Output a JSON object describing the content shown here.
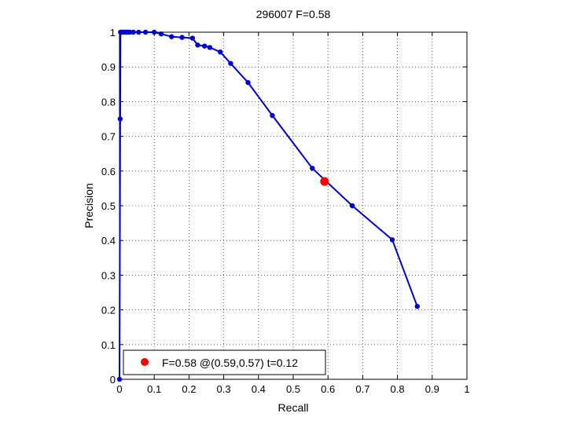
{
  "chart_data": {
    "type": "line",
    "title": "296007 F=0.58",
    "xlabel": "Recall",
    "ylabel": "Precision",
    "xlim": [
      0,
      1
    ],
    "ylim": [
      0,
      1
    ],
    "grid": true,
    "legend_position": "bottom-left",
    "x_ticks": [
      "0",
      "0.1",
      "0.2",
      "0.3",
      "0.4",
      "0.5",
      "0.6",
      "0.7",
      "0.8",
      "0.9",
      "1"
    ],
    "y_ticks": [
      "0",
      "0.1",
      "0.2",
      "0.3",
      "0.4",
      "0.5",
      "0.6",
      "0.7",
      "0.8",
      "0.9",
      "1"
    ],
    "series": [
      {
        "color": "#0000cc",
        "points": [
          [
            0.0,
            0.0
          ],
          [
            0.002,
            0.75
          ],
          [
            0.003,
            1.0
          ],
          [
            0.006,
            1.0
          ],
          [
            0.01,
            1.0
          ],
          [
            0.015,
            1.0
          ],
          [
            0.02,
            1.0
          ],
          [
            0.025,
            1.0
          ],
          [
            0.03,
            1.0
          ],
          [
            0.04,
            1.0
          ],
          [
            0.055,
            1.0
          ],
          [
            0.075,
            1.0
          ],
          [
            0.1,
            1.0
          ],
          [
            0.12,
            0.995
          ],
          [
            0.15,
            0.987
          ],
          [
            0.18,
            0.985
          ],
          [
            0.21,
            0.983
          ],
          [
            0.225,
            0.963
          ],
          [
            0.245,
            0.96
          ],
          [
            0.26,
            0.956
          ],
          [
            0.29,
            0.943
          ],
          [
            0.32,
            0.91
          ],
          [
            0.37,
            0.855
          ],
          [
            0.44,
            0.76
          ],
          [
            0.555,
            0.608
          ],
          [
            0.67,
            0.5
          ],
          [
            0.785,
            0.402
          ],
          [
            0.857,
            0.21
          ]
        ]
      }
    ],
    "best_point": {
      "x": 0.59,
      "y": 0.57,
      "color": "#ff0000"
    },
    "legend": [
      {
        "label": "F=0.58 @(0.59,0.57) t=0.12",
        "color": "#ff0000"
      }
    ]
  }
}
